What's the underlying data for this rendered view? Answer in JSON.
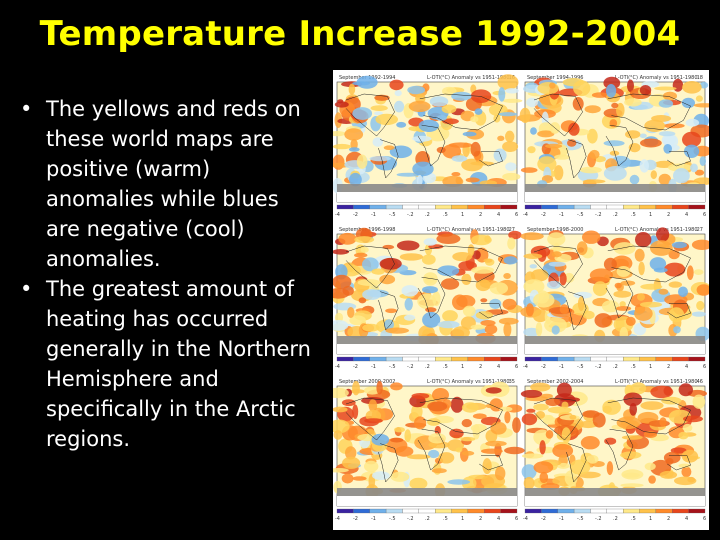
{
  "slide": {
    "title": "Temperature Increase 1992-2004",
    "bullets": [
      "The yellows and reds on these world maps are positive (warm) anomalies while blues are negative (cool) anomalies.",
      "The greatest amount of heating has occurred generally in the Northern Hemisphere and specifically in the Arctic regions."
    ],
    "bullet_glyph": "•"
  },
  "maps": [
    {
      "title": "September 1992-1994",
      "caption": "L-OTI(°C) Anomaly vs 1951-1980",
      "value": ".16"
    },
    {
      "title": "September 1994-1996",
      "caption": "L-OTI(°C) Anomaly vs 1951-1980",
      "value": ".18"
    },
    {
      "title": "September 1996-1998",
      "caption": "L-OTI(°C) Anomaly vs 1951-1980",
      "value": ".27"
    },
    {
      "title": "September 1998-2000",
      "caption": "L-OTI(°C) Anomaly vs 1951-1980",
      "value": ".27"
    },
    {
      "title": "September 2000-2002",
      "caption": "L-OTI(°C) Anomaly vs 1951-1980",
      "value": ".35"
    },
    {
      "title": "September 2002-2004",
      "caption": "L-OTI(°C) Anomaly vs 1951-1980",
      "value": ".46"
    }
  ],
  "scale": {
    "ticks": [
      "-4",
      "-2",
      "-1",
      "-.5",
      "-.2",
      ".2",
      ".5",
      "1",
      "2",
      "4",
      "6"
    ],
    "colors": [
      "#3a22a0",
      "#2f6bd6",
      "#6fb0ea",
      "#b9dcf2",
      "#ffffff",
      "#ffffff",
      "#ffe98a",
      "#ffc24a",
      "#ff8a2a",
      "#e8451c",
      "#a5121a"
    ]
  },
  "colors": {
    "title": "#ffff00",
    "text": "#ffffff",
    "background": "#000000"
  }
}
